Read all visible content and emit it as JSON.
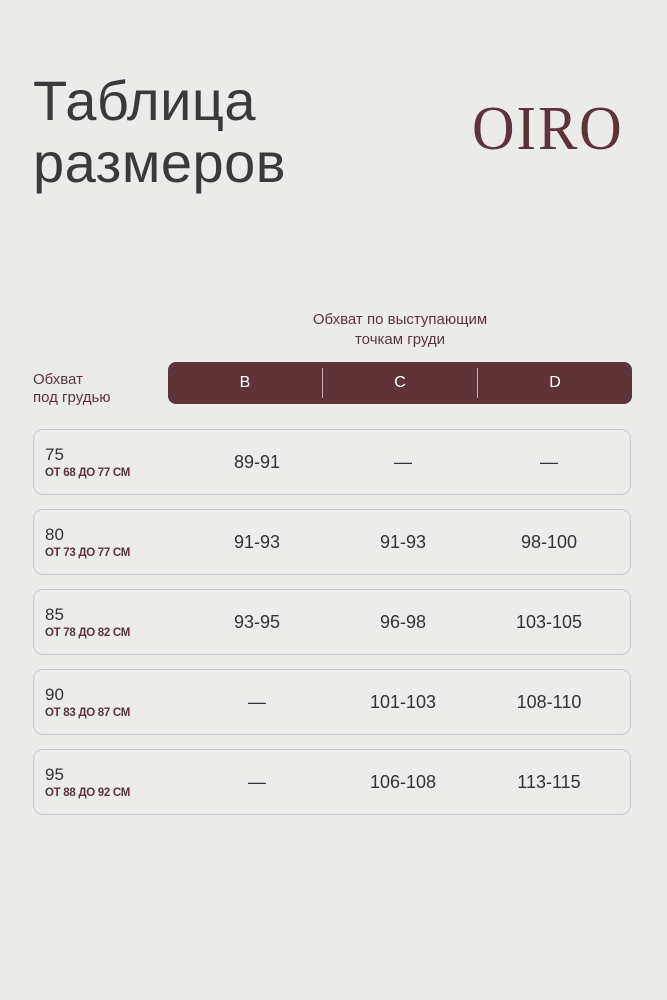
{
  "title": {
    "line1": "Таблица",
    "line2": "размеров"
  },
  "logo": "OIRO",
  "cup_caption": {
    "line1": "Обхват по выступающим",
    "line2": "точкам груди"
  },
  "band_caption": {
    "line1": "Обхват",
    "line2": "под грудью"
  },
  "columns": [
    "B",
    "C",
    "D"
  ],
  "rows": [
    {
      "band": "75",
      "range": "ОТ 68 ДО 77 СМ",
      "values": [
        "89-91",
        "—",
        "—"
      ]
    },
    {
      "band": "80",
      "range": "ОТ 73 ДО 77 СМ",
      "values": [
        "91-93",
        "91-93",
        "98-100"
      ]
    },
    {
      "band": "85",
      "range": "ОТ 78 ДО 82 СМ",
      "values": [
        "93-95",
        "96-98",
        "103-105"
      ]
    },
    {
      "band": "90",
      "range": "ОТ 83 ДО 87 СМ",
      "values": [
        "—",
        "101-103",
        "108-110"
      ]
    },
    {
      "band": "95",
      "range": "ОТ 88 ДО 92 СМ",
      "values": [
        "—",
        "106-108",
        "113-115"
      ]
    }
  ],
  "colors": {
    "accent": "#5e3438",
    "background": "#ebebea"
  }
}
